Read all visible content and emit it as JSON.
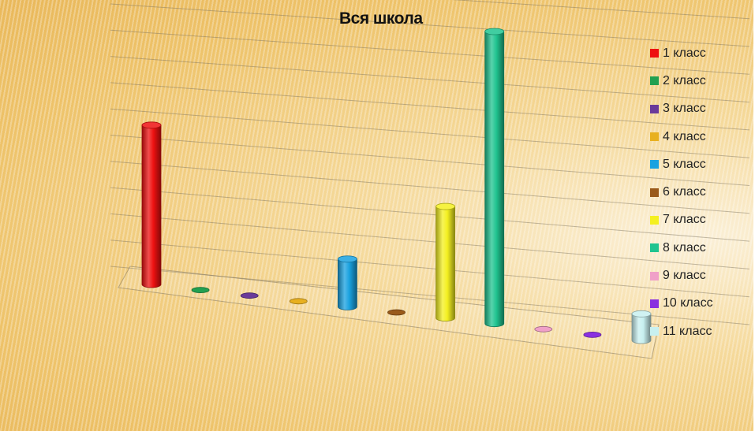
{
  "chart_data": {
    "type": "bar",
    "title": "Вся школа",
    "xlabel": "",
    "ylabel": "",
    "grid": true,
    "legend_position": "right",
    "style": "3d-cylinder",
    "ylim": [
      0,
      12
    ],
    "categories": [
      "1 класс",
      "2 класс",
      "3 класс",
      "4 класс",
      "5 класс",
      "6 класс",
      "7 класс",
      "8 класс",
      "9 класс",
      "10 класс",
      "11 класс"
    ],
    "values": [
      6,
      0,
      0,
      0,
      1.8,
      0,
      4.2,
      11,
      0,
      0,
      1
    ],
    "colors": [
      "#ee1111",
      "#22a050",
      "#6a3a9a",
      "#e8b020",
      "#1aa2e0",
      "#9a5a1a",
      "#f4f020",
      "#20c490",
      "#f0a0c8",
      "#8a30e0",
      "#c8f0f0"
    ]
  }
}
